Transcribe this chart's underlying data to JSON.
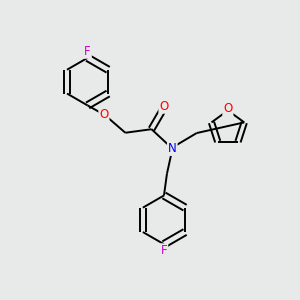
{
  "bg_color": "#e8eaea",
  "bond_color": "#000000",
  "atom_colors": {
    "F": "#cc00cc",
    "O": "#ff0000",
    "N": "#0000ee"
  },
  "bond_width": 1.4,
  "font_size_atom": 8.5,
  "scale": 1.0
}
